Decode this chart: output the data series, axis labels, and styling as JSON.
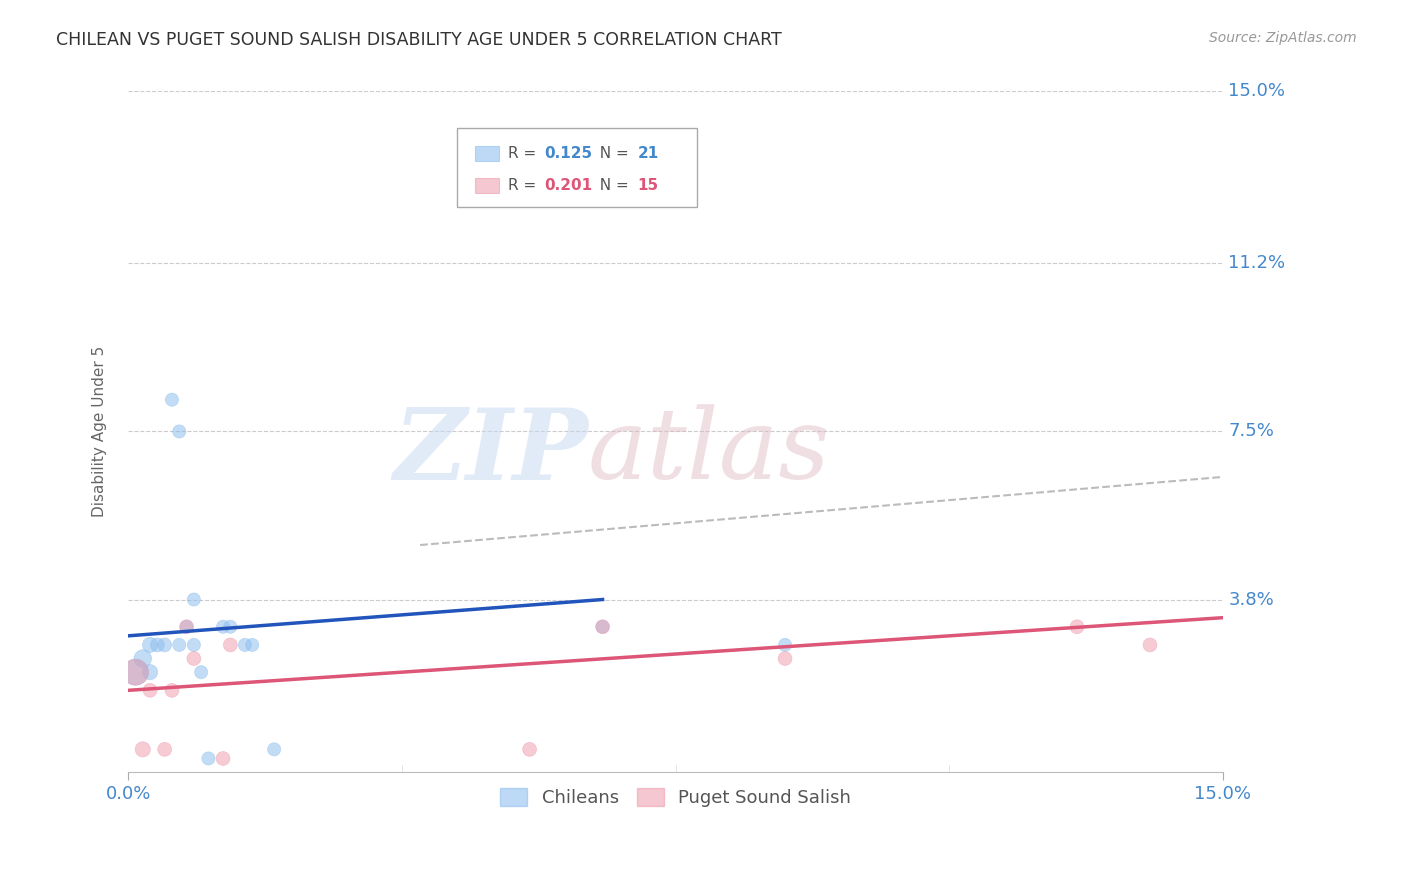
{
  "title": "CHILEAN VS PUGET SOUND SALISH DISABILITY AGE UNDER 5 CORRELATION CHART",
  "source": "Source: ZipAtlas.com",
  "ylabel": "Disability Age Under 5",
  "xlim": [
    0.0,
    0.15
  ],
  "ylim": [
    0.0,
    0.15
  ],
  "ytick_positions": [
    0.15,
    0.112,
    0.075,
    0.038
  ],
  "ytick_labels": [
    "15.0%",
    "11.2%",
    "7.5%",
    "3.8%"
  ],
  "background_color": "#ffffff",
  "chileans_color": "#88bbee",
  "puget_color": "#ee99aa",
  "chileans_label": "Chileans",
  "puget_label": "Puget Sound Salish",
  "blue_line_color": "#2255bb",
  "pink_line_color": "#dd5577",
  "dashed_line_color": "#bbbbbb",
  "chileans_x": [
    0.001,
    0.002,
    0.003,
    0.003,
    0.004,
    0.005,
    0.006,
    0.007,
    0.007,
    0.008,
    0.009,
    0.009,
    0.01,
    0.011,
    0.013,
    0.014,
    0.016,
    0.017,
    0.02,
    0.065,
    0.09
  ],
  "chileans_y": [
    0.022,
    0.025,
    0.022,
    0.028,
    0.028,
    0.028,
    0.082,
    0.075,
    0.028,
    0.032,
    0.038,
    0.028,
    0.022,
    0.003,
    0.032,
    0.032,
    0.028,
    0.028,
    0.005,
    0.032,
    0.028
  ],
  "chileans_sizes": [
    350,
    160,
    120,
    120,
    100,
    100,
    90,
    90,
    90,
    90,
    90,
    90,
    90,
    90,
    90,
    90,
    90,
    90,
    90,
    90,
    90
  ],
  "puget_x": [
    0.001,
    0.002,
    0.003,
    0.005,
    0.006,
    0.008,
    0.009,
    0.013,
    0.014,
    0.055,
    0.065,
    0.09,
    0.13,
    0.14
  ],
  "puget_y": [
    0.022,
    0.005,
    0.018,
    0.005,
    0.018,
    0.032,
    0.025,
    0.003,
    0.028,
    0.005,
    0.032,
    0.025,
    0.032,
    0.028
  ],
  "puget_sizes": [
    350,
    120,
    100,
    100,
    100,
    100,
    100,
    100,
    100,
    100,
    100,
    100,
    100,
    100
  ],
  "blue_line_x": [
    0.0,
    0.065
  ],
  "blue_line_y": [
    0.03,
    0.038
  ],
  "pink_line_x": [
    0.0,
    0.15
  ],
  "pink_line_y": [
    0.018,
    0.034
  ],
  "dashed_line_x": [
    0.04,
    0.15
  ],
  "dashed_line_y": [
    0.05,
    0.065
  ]
}
